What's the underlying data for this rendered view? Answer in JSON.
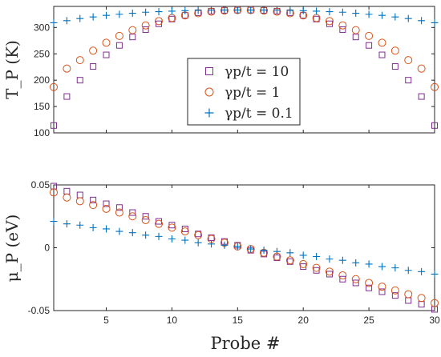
{
  "chart_data": [
    {
      "type": "scatter",
      "title": "",
      "ylabel": "T_P (K)",
      "xlabel": "",
      "xlim": [
        1,
        30
      ],
      "ylim": [
        100,
        340
      ],
      "xticks": [
        5,
        10,
        15,
        20,
        25,
        30
      ],
      "yticks": [
        100,
        150,
        200,
        250,
        300
      ],
      "ytick_labels": [
        "100",
        "150",
        "200",
        "250",
        "300"
      ],
      "grid": false,
      "legend": {
        "placement": "center",
        "entries": [
          "γp/t = 10",
          "γp/t = 1",
          "γp/t = 0.1"
        ]
      },
      "series": [
        {
          "name": "γp/t = 10",
          "marker": "square",
          "color": "#7E2F8E",
          "x": [
            1,
            2,
            3,
            4,
            5,
            6,
            7,
            8,
            9,
            10,
            11,
            12,
            13,
            14,
            15,
            16,
            17,
            18,
            19,
            20,
            21,
            22,
            23,
            24,
            25,
            26,
            27,
            28,
            29,
            30
          ],
          "y": [
            114,
            169,
            200,
            226,
            248,
            266,
            282,
            296,
            307,
            316,
            323,
            328,
            331,
            332.5,
            333,
            333,
            332.5,
            331,
            328,
            323,
            316,
            307,
            296,
            282,
            266,
            248,
            226,
            200,
            169,
            114
          ]
        },
        {
          "name": "γp/t = 1",
          "marker": "circle",
          "color": "#D95319",
          "x": [
            1,
            2,
            3,
            4,
            5,
            6,
            7,
            8,
            9,
            10,
            11,
            12,
            13,
            14,
            15,
            16,
            17,
            18,
            19,
            20,
            21,
            22,
            23,
            24,
            25,
            26,
            27,
            28,
            29,
            30
          ],
          "y": [
            187,
            222,
            238,
            256,
            271,
            284,
            295,
            304,
            312,
            318,
            323,
            327,
            330,
            332,
            333,
            333,
            332,
            330,
            327,
            323,
            318,
            312,
            304,
            295,
            284,
            271,
            256,
            238,
            222,
            187
          ]
        },
        {
          "name": "γp/t = 0.1",
          "marker": "plus",
          "color": "#0072BD",
          "x": [
            1,
            2,
            3,
            4,
            5,
            6,
            7,
            8,
            9,
            10,
            11,
            12,
            13,
            14,
            15,
            16,
            17,
            18,
            19,
            20,
            21,
            22,
            23,
            24,
            25,
            26,
            27,
            28,
            29,
            30
          ],
          "y": [
            309,
            313,
            317,
            320,
            323,
            325,
            327,
            329,
            330,
            331,
            332,
            332.5,
            333,
            333,
            333,
            333,
            333,
            333,
            332.5,
            332,
            331,
            330,
            329,
            327,
            325,
            323,
            320,
            317,
            313,
            309
          ]
        }
      ]
    },
    {
      "type": "scatter",
      "title": "",
      "ylabel": "μ_P (eV)",
      "xlabel": "Probe #",
      "xlim": [
        1,
        30
      ],
      "ylim": [
        -0.05,
        0.05
      ],
      "xticks": [
        5,
        10,
        15,
        20,
        25,
        30
      ],
      "xtick_labels": [
        "5",
        "10",
        "15",
        "20",
        "25",
        "30"
      ],
      "yticks": [
        -0.05,
        0,
        0.05
      ],
      "ytick_labels": [
        "-0.05",
        "0",
        "0.05"
      ],
      "grid": false,
      "series": [
        {
          "name": "γp/t = 10",
          "marker": "square",
          "color": "#7E2F8E",
          "x": [
            1,
            2,
            3,
            4,
            5,
            6,
            7,
            8,
            9,
            10,
            11,
            12,
            13,
            14,
            15,
            16,
            17,
            18,
            19,
            20,
            21,
            22,
            23,
            24,
            25,
            26,
            27,
            28,
            29,
            30
          ],
          "y": [
            0.049,
            0.045,
            0.042,
            0.038,
            0.035,
            0.032,
            0.028,
            0.025,
            0.021,
            0.018,
            0.015,
            0.011,
            0.008,
            0.005,
            0.002,
            -0.002,
            -0.005,
            -0.008,
            -0.011,
            -0.015,
            -0.018,
            -0.021,
            -0.025,
            -0.028,
            -0.032,
            -0.035,
            -0.038,
            -0.042,
            -0.045,
            -0.049
          ]
        },
        {
          "name": "γp/t = 1",
          "marker": "circle",
          "color": "#D95319",
          "x": [
            1,
            2,
            3,
            4,
            5,
            6,
            7,
            8,
            9,
            10,
            11,
            12,
            13,
            14,
            15,
            16,
            17,
            18,
            19,
            20,
            21,
            22,
            23,
            24,
            25,
            26,
            27,
            28,
            29,
            30
          ],
          "y": [
            0.044,
            0.04,
            0.037,
            0.034,
            0.031,
            0.028,
            0.025,
            0.022,
            0.019,
            0.016,
            0.013,
            0.01,
            0.007,
            0.004,
            0.001,
            -0.001,
            -0.004,
            -0.007,
            -0.01,
            -0.013,
            -0.016,
            -0.019,
            -0.022,
            -0.025,
            -0.028,
            -0.031,
            -0.034,
            -0.037,
            -0.04,
            -0.044
          ]
        },
        {
          "name": "γp/t = 0.1",
          "marker": "plus",
          "color": "#0072BD",
          "x": [
            1,
            2,
            3,
            4,
            5,
            6,
            7,
            8,
            9,
            10,
            11,
            12,
            13,
            14,
            15,
            16,
            17,
            18,
            19,
            20,
            21,
            22,
            23,
            24,
            25,
            26,
            27,
            28,
            29,
            30
          ],
          "y": [
            0.021,
            0.019,
            0.018,
            0.016,
            0.015,
            0.013,
            0.012,
            0.01,
            0.009,
            0.007,
            0.006,
            0.004,
            0.003,
            0.002,
            0.001,
            -0.001,
            -0.002,
            -0.003,
            -0.004,
            -0.006,
            -0.007,
            -0.009,
            -0.01,
            -0.012,
            -0.013,
            -0.015,
            -0.016,
            -0.018,
            -0.019,
            -0.021
          ]
        }
      ]
    }
  ]
}
